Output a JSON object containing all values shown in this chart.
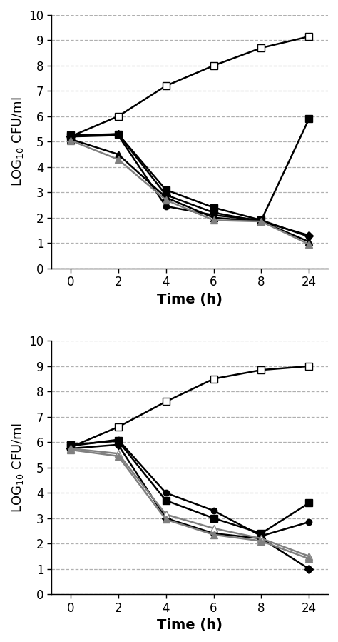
{
  "top": {
    "series": [
      {
        "label": "open_square",
        "xi": [
          0,
          1,
          2,
          3,
          4,
          5
        ],
        "y": [
          5.2,
          6.0,
          7.2,
          8.0,
          8.7,
          9.15
        ],
        "marker": "s",
        "markerfacecolor": "white",
        "markeredgecolor": "black",
        "color": "black",
        "linewidth": 1.8,
        "markersize": 7
      },
      {
        "label": "filled_square",
        "xi": [
          0,
          1,
          2,
          3,
          4,
          5
        ],
        "y": [
          5.25,
          5.3,
          3.1,
          2.4,
          1.9,
          5.9
        ],
        "marker": "s",
        "markerfacecolor": "black",
        "markeredgecolor": "black",
        "color": "black",
        "linewidth": 1.8,
        "markersize": 7
      },
      {
        "label": "filled_diamond",
        "xi": [
          0,
          1,
          2,
          3,
          4,
          5
        ],
        "y": [
          5.2,
          5.3,
          2.9,
          2.2,
          1.85,
          1.3
        ],
        "marker": "D",
        "markerfacecolor": "black",
        "markeredgecolor": "black",
        "color": "black",
        "linewidth": 1.8,
        "markersize": 6
      },
      {
        "label": "filled_circle",
        "xi": [
          0,
          1,
          2,
          3,
          4,
          5
        ],
        "y": [
          5.2,
          5.25,
          2.45,
          2.1,
          1.9,
          1.25
        ],
        "marker": "o",
        "markerfacecolor": "black",
        "markeredgecolor": "black",
        "color": "black",
        "linewidth": 1.8,
        "markersize": 6
      },
      {
        "label": "filled_triangle_black",
        "xi": [
          0,
          1,
          2,
          3,
          4,
          5
        ],
        "y": [
          5.1,
          4.5,
          2.8,
          2.0,
          1.85,
          1.05
        ],
        "marker": "^",
        "markerfacecolor": "black",
        "markeredgecolor": "black",
        "color": "black",
        "linewidth": 1.8,
        "markersize": 7
      },
      {
        "label": "filled_triangle_gray",
        "xi": [
          0,
          1,
          2,
          3,
          4,
          5
        ],
        "y": [
          5.05,
          4.3,
          2.7,
          1.9,
          1.85,
          0.95
        ],
        "marker": "^",
        "markerfacecolor": "gray",
        "markeredgecolor": "gray",
        "color": "gray",
        "linewidth": 1.8,
        "markersize": 7
      }
    ],
    "ylabel": "LOG$_{10}$ CFU/ml",
    "xlabel": "Time (h)",
    "ylim": [
      0,
      10
    ],
    "yticks": [
      0,
      1,
      2,
      3,
      4,
      5,
      6,
      7,
      8,
      9,
      10
    ],
    "xtick_labels": [
      "0",
      "2",
      "4",
      "6",
      "8",
      "24"
    ]
  },
  "bottom": {
    "series": [
      {
        "label": "open_square",
        "xi": [
          0,
          1,
          2,
          3,
          4,
          5
        ],
        "y": [
          5.8,
          6.6,
          7.6,
          8.5,
          8.85,
          9.0
        ],
        "marker": "s",
        "markerfacecolor": "white",
        "markeredgecolor": "black",
        "color": "black",
        "linewidth": 1.8,
        "markersize": 7
      },
      {
        "label": "filled_square",
        "xi": [
          0,
          1,
          2,
          3,
          4,
          5
        ],
        "y": [
          5.9,
          6.05,
          3.7,
          3.0,
          2.4,
          3.6
        ],
        "marker": "s",
        "markerfacecolor": "black",
        "markeredgecolor": "black",
        "color": "black",
        "linewidth": 1.8,
        "markersize": 7
      },
      {
        "label": "filled_circle",
        "xi": [
          0,
          1,
          2,
          3,
          4,
          5
        ],
        "y": [
          5.85,
          6.1,
          4.0,
          3.3,
          2.3,
          2.85
        ],
        "marker": "o",
        "markerfacecolor": "black",
        "markeredgecolor": "black",
        "color": "black",
        "linewidth": 1.8,
        "markersize": 6
      },
      {
        "label": "filled_diamond",
        "xi": [
          0,
          1,
          2,
          3,
          4,
          5
        ],
        "y": [
          5.75,
          5.9,
          3.0,
          2.4,
          2.2,
          1.0
        ],
        "marker": "D",
        "markerfacecolor": "black",
        "markeredgecolor": "black",
        "color": "black",
        "linewidth": 1.8,
        "markersize": 6
      },
      {
        "label": "open_triangle",
        "xi": [
          0,
          1,
          2,
          3,
          4,
          5
        ],
        "y": [
          5.75,
          5.55,
          3.15,
          2.6,
          2.2,
          1.5
        ],
        "marker": "^",
        "markerfacecolor": "white",
        "markeredgecolor": "gray",
        "color": "gray",
        "linewidth": 1.8,
        "markersize": 7
      },
      {
        "label": "filled_triangle_gray",
        "xi": [
          0,
          1,
          2,
          3,
          4,
          5
        ],
        "y": [
          5.7,
          5.45,
          2.95,
          2.35,
          2.1,
          1.4
        ],
        "marker": "^",
        "markerfacecolor": "gray",
        "markeredgecolor": "gray",
        "color": "gray",
        "linewidth": 1.8,
        "markersize": 7
      }
    ],
    "ylabel": "LOG$_{10}$ CFU/ml",
    "xlabel": "Time (h)",
    "ylim": [
      0,
      10
    ],
    "yticks": [
      0,
      1,
      2,
      3,
      4,
      5,
      6,
      7,
      8,
      9,
      10
    ],
    "xtick_labels": [
      "0",
      "2",
      "4",
      "6",
      "8",
      "24"
    ]
  },
  "background_color": "#ffffff",
  "grid_color": "#b0b0b0"
}
